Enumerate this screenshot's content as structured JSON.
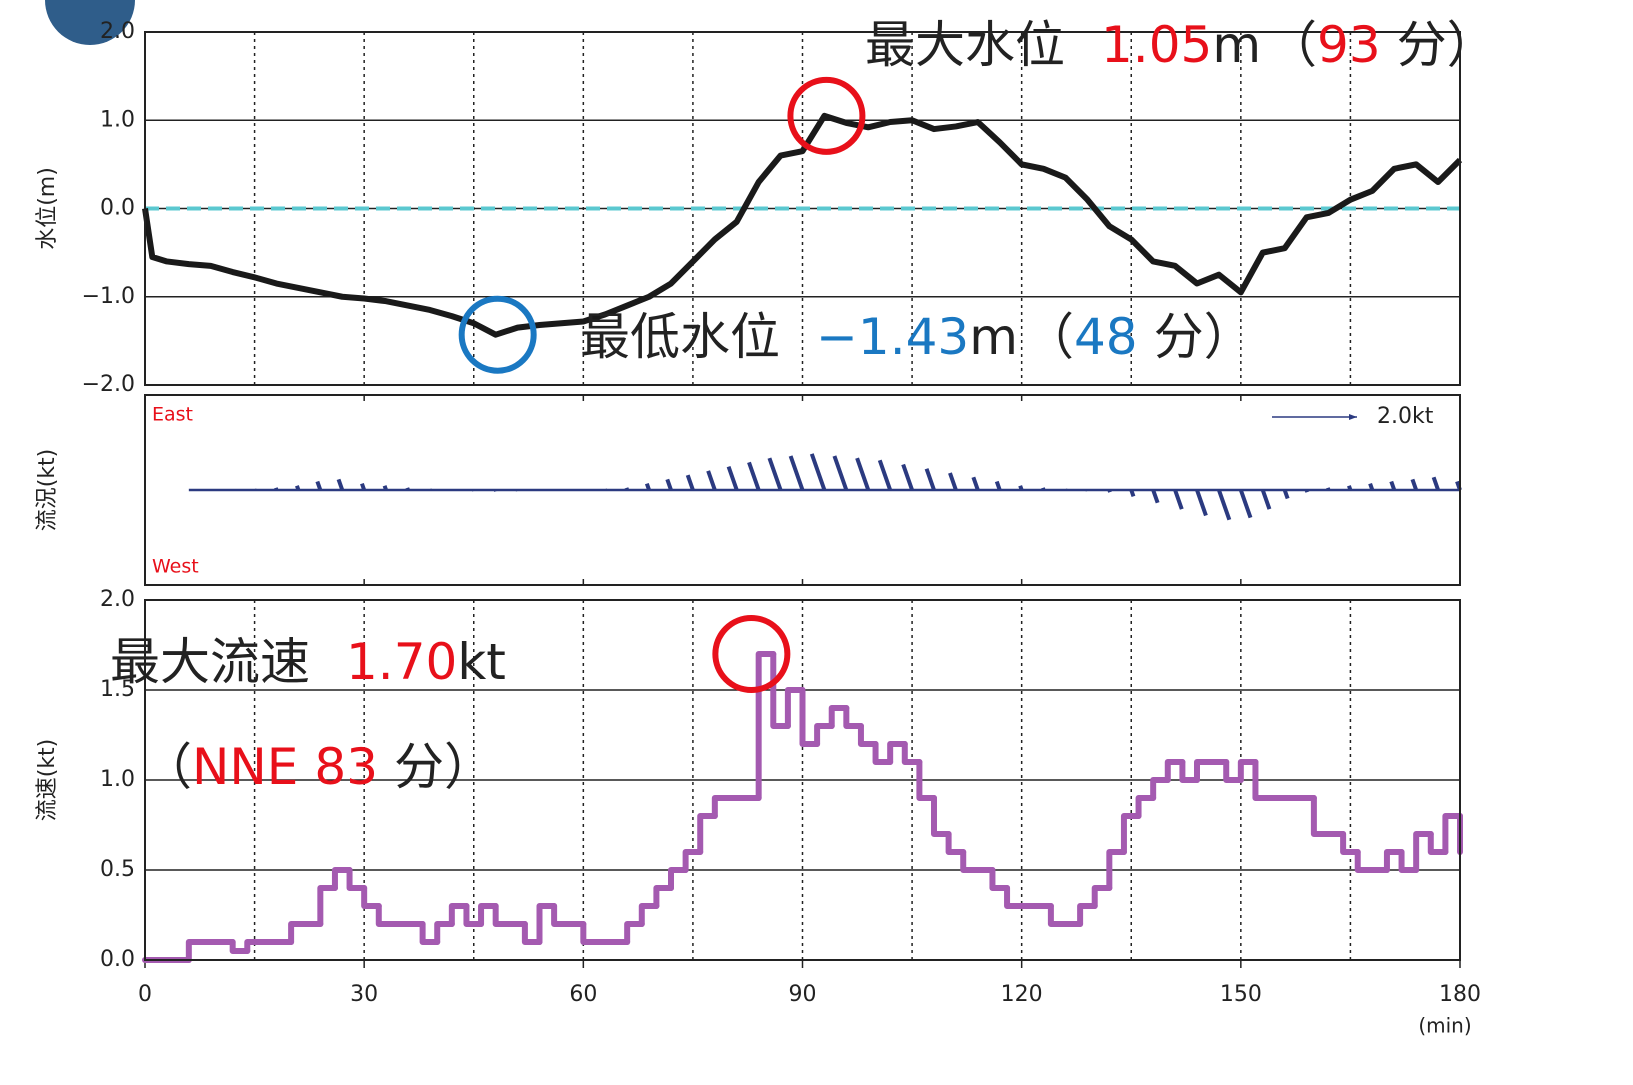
{
  "chart_data": [
    {
      "type": "line",
      "ylabel": "水位(m)",
      "xlim": [
        0,
        180
      ],
      "ylim": [
        -2,
        2
      ],
      "yticks": [
        {
          "value": 2,
          "label": "2.0"
        },
        {
          "value": 1,
          "label": "1.0"
        },
        {
          "value": 0,
          "label": "0.0"
        },
        {
          "value": -1,
          "label": "−1.0"
        },
        {
          "value": -2,
          "label": "−2.0"
        }
      ],
      "xgrid": [
        15,
        30,
        45,
        60,
        75,
        90,
        105,
        120,
        135,
        150,
        165
      ],
      "reference": {
        "value": 0,
        "color": "#5bc8d0"
      },
      "color": "#1a1a1a",
      "x": [
        0,
        1,
        3,
        6,
        9,
        12,
        15,
        18,
        21,
        24,
        27,
        30,
        33,
        36,
        39,
        42,
        45,
        48,
        51,
        54,
        57,
        60,
        63,
        66,
        69,
        72,
        75,
        78,
        81,
        84,
        87,
        90,
        93,
        96,
        99,
        102,
        105,
        108,
        111,
        114,
        117,
        120,
        123,
        126,
        129,
        132,
        135,
        138,
        141,
        144,
        147,
        150,
        153,
        156,
        159,
        162,
        165,
        168,
        171,
        174,
        177,
        180
      ],
      "values": [
        0.0,
        -0.55,
        -0.6,
        -0.63,
        -0.65,
        -0.72,
        -0.78,
        -0.85,
        -0.9,
        -0.95,
        -1.0,
        -1.02,
        -1.05,
        -1.1,
        -1.15,
        -1.22,
        -1.3,
        -1.43,
        -1.35,
        -1.32,
        -1.3,
        -1.28,
        -1.2,
        -1.1,
        -1.0,
        -0.85,
        -0.6,
        -0.35,
        -0.15,
        0.3,
        0.6,
        0.65,
        1.05,
        0.97,
        0.92,
        0.98,
        1.0,
        0.9,
        0.93,
        0.98,
        0.75,
        0.5,
        0.45,
        0.35,
        0.1,
        -0.2,
        -0.35,
        -0.6,
        -0.65,
        -0.85,
        -0.75,
        -0.95,
        -0.5,
        -0.45,
        -0.1,
        -0.05,
        0.1,
        0.2,
        0.45,
        0.5,
        0.3,
        0.55
      ],
      "annotations": [
        {
          "prefix": "最大水位",
          "value": 1.05,
          "unit": "m",
          "open": "（",
          "x": 93,
          "suffix": "分）",
          "color": "#e8101a"
        },
        {
          "prefix": "最低水位",
          "value": {
            "value": -1.43,
            "label": "−1.43"
          },
          "unit": "m",
          "open": "（",
          "x": 48,
          "suffix": "分）",
          "color": "#1a78c2"
        }
      ]
    },
    {
      "type": "vector",
      "ylabel": "流況(kt)",
      "xlim": [
        0,
        180
      ],
      "top_label": "East",
      "bottom_label": "West",
      "scale": {
        "value": 2.0,
        "label": "2.0kt"
      },
      "color": "#2b3a80",
      "x": [
        6,
        9,
        12,
        15,
        18,
        21,
        24,
        27,
        30,
        33,
        36,
        39,
        42,
        45,
        48,
        51,
        54,
        57,
        60,
        63,
        66,
        69,
        72,
        75,
        78,
        81,
        84,
        87,
        90,
        93,
        96,
        99,
        102,
        105,
        108,
        111,
        114,
        117,
        120,
        123,
        126,
        129,
        132,
        135,
        138,
        141,
        144,
        147,
        150,
        153,
        156,
        159,
        162,
        165,
        168,
        171,
        174,
        177,
        180
      ],
      "values": [
        0,
        0,
        0,
        0.02,
        0.05,
        0.1,
        0.2,
        0.25,
        0.15,
        0.1,
        0.05,
        0.02,
        0,
        -0.02,
        -0.03,
        -0.02,
        0,
        0,
        0,
        0.02,
        0.05,
        0.15,
        0.25,
        0.35,
        0.45,
        0.55,
        0.65,
        0.75,
        0.8,
        0.85,
        0.8,
        0.75,
        0.7,
        0.6,
        0.5,
        0.4,
        0.3,
        0.2,
        0.1,
        0.05,
        0.02,
        -0.02,
        -0.05,
        -0.15,
        -0.3,
        -0.45,
        -0.6,
        -0.7,
        -0.65,
        -0.45,
        -0.2,
        -0.05,
        0.05,
        0.1,
        0.15,
        0.2,
        0.25,
        0.3,
        0.2
      ]
    },
    {
      "type": "step",
      "ylabel": "流速(kt)",
      "xlabel": "(min)",
      "xlim": [
        0,
        180
      ],
      "ylim": [
        0,
        2
      ],
      "yticks": [
        {
          "value": 0,
          "label": "0.0"
        },
        0.5,
        {
          "value": 1,
          "label": "1.0"
        },
        1.5,
        {
          "value": 2,
          "label": "2.0"
        }
      ],
      "xticks": [
        0,
        30,
        60,
        90,
        120,
        150,
        180
      ],
      "xgrid": [
        15,
        30,
        45,
        60,
        75,
        90,
        105,
        120,
        135,
        150,
        165
      ],
      "color": "#a45ab0",
      "x": [
        0,
        2,
        4,
        6,
        8,
        10,
        12,
        14,
        16,
        18,
        20,
        22,
        24,
        26,
        28,
        30,
        32,
        34,
        36,
        38,
        40,
        42,
        44,
        46,
        48,
        50,
        52,
        54,
        56,
        58,
        60,
        62,
        64,
        66,
        68,
        70,
        72,
        74,
        76,
        78,
        80,
        82,
        84,
        86,
        88,
        90,
        92,
        94,
        96,
        98,
        100,
        102,
        104,
        106,
        108,
        110,
        112,
        114,
        116,
        118,
        120,
        122,
        124,
        126,
        128,
        130,
        132,
        134,
        136,
        138,
        140,
        142,
        144,
        146,
        148,
        150,
        152,
        154,
        156,
        158,
        160,
        162,
        164,
        166,
        168,
        170,
        172,
        174,
        176,
        178,
        180
      ],
      "values": [
        0,
        0,
        0,
        0.1,
        0.1,
        0.1,
        0.05,
        0.1,
        0.1,
        0.1,
        0.2,
        0.2,
        0.4,
        0.5,
        0.4,
        0.3,
        0.2,
        0.2,
        0.2,
        0.1,
        0.2,
        0.3,
        0.2,
        0.3,
        0.2,
        0.2,
        0.1,
        0.3,
        0.2,
        0.2,
        0.1,
        0.1,
        0.1,
        0.2,
        0.3,
        0.4,
        0.5,
        0.6,
        0.8,
        0.9,
        0.9,
        0.9,
        1.7,
        1.3,
        1.5,
        1.2,
        1.3,
        1.4,
        1.3,
        1.2,
        1.1,
        1.2,
        1.1,
        0.9,
        0.7,
        0.6,
        0.5,
        0.5,
        0.4,
        0.3,
        0.3,
        0.3,
        0.2,
        0.2,
        0.3,
        0.4,
        0.6,
        0.8,
        0.9,
        1.0,
        1.1,
        1.0,
        1.1,
        1.1,
        1.0,
        1.1,
        0.9,
        0.9,
        0.9,
        0.9,
        0.7,
        0.7,
        0.6,
        0.5,
        0.5,
        0.6,
        0.5,
        0.7,
        0.6,
        0.8,
        0.6
      ],
      "annotations": [
        {
          "prefix": "最大流速",
          "value": {
            "value": 1.7,
            "label": "1.70"
          },
          "unit": "kt",
          "open": "（",
          "direction": "NNE",
          "x": 83,
          "suffix": "分）",
          "color": "#e8101a"
        }
      ]
    }
  ]
}
